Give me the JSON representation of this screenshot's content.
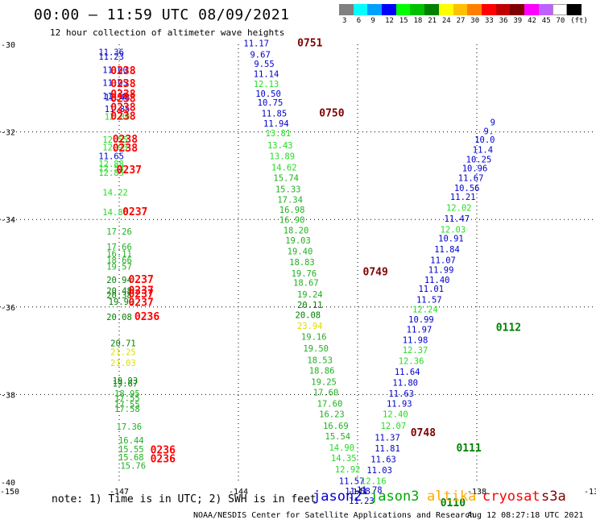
{
  "header": {
    "title": "00:00 – 11:59 UTC 08/09/2021",
    "subtitle": "12 hour collection of altimeter wave heights"
  },
  "colorbar": {
    "ticks": [
      "3",
      "6",
      "9",
      "12",
      "15",
      "18",
      "21",
      "24",
      "27",
      "30",
      "33",
      "36",
      "39",
      "42",
      "45",
      "70",
      "(ft)"
    ],
    "colors": [
      "#808080",
      "#00ffff",
      "#00a0ff",
      "#0000ff",
      "#00ff00",
      "#00c000",
      "#008000",
      "#ffff00",
      "#ffc000",
      "#ff8000",
      "#ff0000",
      "#c00000",
      "#800000",
      "#ff00ff",
      "#c060ff",
      "#ffffff",
      "#000000"
    ]
  },
  "axes": {
    "lon_ticks": [
      "-150",
      "-147",
      "-144",
      "-141",
      "-138",
      "-13"
    ],
    "lat_ticks": [
      "-30",
      "-32",
      "-34",
      "-36",
      "-38",
      "-40"
    ]
  },
  "colors": {
    "jason2": "#0000cc",
    "jason3": "#00aa00",
    "altika": "#ffaa00",
    "cryosat": "#ff0000",
    "s3a": "#800000",
    "dkgreen": "#008000",
    "light": "#22dd22",
    "mid": "#20b020",
    "yellow": "#dddd00",
    "grid": "#000000"
  },
  "observations": [
    {
      "lon": -147.2,
      "lat": -30.25,
      "v": "11.36",
      "c": "jason2"
    },
    {
      "lon": -147.2,
      "lat": -30.35,
      "v": "11.23",
      "c": "jason2"
    },
    {
      "lon": -147.1,
      "lat": -30.65,
      "v": "11.00",
      "c": "jason2"
    },
    {
      "lon": -147.1,
      "lat": -30.95,
      "v": "11.05",
      "c": "jason2"
    },
    {
      "lon": -147.1,
      "lat": -31.25,
      "v": "11.18",
      "c": "jason2"
    },
    {
      "lon": -147.05,
      "lat": -31.28,
      "v": "11.48",
      "c": "jason2"
    },
    {
      "lon": -147.05,
      "lat": -31.55,
      "v": "11.85",
      "c": "jason2"
    },
    {
      "lon": -147.05,
      "lat": -31.72,
      "v": "12.80",
      "c": "light"
    },
    {
      "lon": -147.1,
      "lat": -32.25,
      "v": "12.55",
      "c": "light"
    },
    {
      "lon": -147.1,
      "lat": -32.42,
      "v": "12.93",
      "c": "light"
    },
    {
      "lon": -147.2,
      "lat": -32.62,
      "v": "11.65",
      "c": "jason2"
    },
    {
      "lon": -147.2,
      "lat": -32.8,
      "v": "12.88",
      "c": "light"
    },
    {
      "lon": -147.2,
      "lat": -32.9,
      "v": "12.53",
      "c": "light"
    },
    {
      "lon": -147.2,
      "lat": -33.0,
      "v": "12.85",
      "c": "light"
    },
    {
      "lon": -147.1,
      "lat": -33.45,
      "v": "14.22",
      "c": "light"
    },
    {
      "lon": -147.1,
      "lat": -33.9,
      "v": "14.86",
      "c": "light"
    },
    {
      "lon": -147.0,
      "lat": -34.35,
      "v": "17.26",
      "c": "mid"
    },
    {
      "lon": -147.0,
      "lat": -34.7,
      "v": "17.66",
      "c": "mid"
    },
    {
      "lon": -147.0,
      "lat": -34.85,
      "v": "16.11",
      "c": "mid"
    },
    {
      "lon": -147.0,
      "lat": -35.0,
      "v": "18.66",
      "c": "mid"
    },
    {
      "lon": -147.0,
      "lat": -35.15,
      "v": "19.57",
      "c": "mid"
    },
    {
      "lon": -147.0,
      "lat": -35.45,
      "v": "20.94",
      "c": "dkgreen"
    },
    {
      "lon": -147.0,
      "lat": -35.7,
      "v": "20.48",
      "c": "dkgreen"
    },
    {
      "lon": -147.0,
      "lat": -35.8,
      "v": "20.38",
      "c": "dkgreen"
    },
    {
      "lon": -146.95,
      "lat": -35.95,
      "v": "19.99",
      "c": "dkgreen"
    },
    {
      "lon": -147.0,
      "lat": -36.3,
      "v": "20.08",
      "c": "dkgreen"
    },
    {
      "lon": -146.9,
      "lat": -36.9,
      "v": "20.71",
      "c": "dkgreen"
    },
    {
      "lon": -146.9,
      "lat": -37.1,
      "v": "21.25",
      "c": "yellow"
    },
    {
      "lon": -146.9,
      "lat": -37.35,
      "v": "21.03",
      "c": "yellow"
    },
    {
      "lon": -146.85,
      "lat": -37.75,
      "v": "19.93",
      "c": "dkgreen"
    },
    {
      "lon": -146.85,
      "lat": -37.82,
      "v": "19.67",
      "c": "dkgreen"
    },
    {
      "lon": -146.8,
      "lat": -38.05,
      "v": "18.95",
      "c": "mid"
    },
    {
      "lon": -146.8,
      "lat": -38.15,
      "v": "17.55",
      "c": "mid"
    },
    {
      "lon": -146.8,
      "lat": -38.3,
      "v": "17.55",
      "c": "mid"
    },
    {
      "lon": -146.8,
      "lat": -38.4,
      "v": "17.58",
      "c": "mid"
    },
    {
      "lon": -146.75,
      "lat": -38.8,
      "v": "17.36",
      "c": "mid"
    },
    {
      "lon": -146.7,
      "lat": -39.12,
      "v": "16.44",
      "c": "mid"
    },
    {
      "lon": -146.7,
      "lat": -39.32,
      "v": "15.55",
      "c": "mid"
    },
    {
      "lon": -146.7,
      "lat": -39.5,
      "v": "15.68",
      "c": "mid"
    },
    {
      "lon": -146.65,
      "lat": -39.7,
      "v": "15.76",
      "c": "mid"
    },
    {
      "lon": -143.55,
      "lat": -30.05,
      "v": "11.17",
      "c": "jason2"
    },
    {
      "lon": -143.45,
      "lat": -30.3,
      "v": "9.67",
      "c": "jason2"
    },
    {
      "lon": -143.35,
      "lat": -30.52,
      "v": "9.55",
      "c": "jason2"
    },
    {
      "lon": -143.3,
      "lat": -30.75,
      "v": "11.14",
      "c": "jason2"
    },
    {
      "lon": -143.3,
      "lat": -30.98,
      "v": "12.13",
      "c": "light"
    },
    {
      "lon": -143.25,
      "lat": -31.2,
      "v": "10.50",
      "c": "jason2"
    },
    {
      "lon": -143.2,
      "lat": -31.4,
      "v": "10.75",
      "c": "jason2"
    },
    {
      "lon": -143.1,
      "lat": -31.65,
      "v": "11.85",
      "c": "jason2"
    },
    {
      "lon": -143.05,
      "lat": -31.88,
      "v": "11.94",
      "c": "jason2"
    },
    {
      "lon": -143.0,
      "lat": -32.1,
      "v": "13.81",
      "c": "light"
    },
    {
      "lon": -142.95,
      "lat": -32.38,
      "v": "13.43",
      "c": "light"
    },
    {
      "lon": -142.9,
      "lat": -32.62,
      "v": "13.89",
      "c": "light"
    },
    {
      "lon": -142.85,
      "lat": -32.88,
      "v": "14.62",
      "c": "light"
    },
    {
      "lon": -142.8,
      "lat": -33.12,
      "v": "15.74",
      "c": "mid"
    },
    {
      "lon": -142.75,
      "lat": -33.38,
      "v": "15.33",
      "c": "mid"
    },
    {
      "lon": -142.7,
      "lat": -33.62,
      "v": "17.34",
      "c": "mid"
    },
    {
      "lon": -142.65,
      "lat": -33.85,
      "v": "16.98",
      "c": "mid"
    },
    {
      "lon": -142.65,
      "lat": -34.08,
      "v": "16.90",
      "c": "mid"
    },
    {
      "lon": -142.55,
      "lat": -34.32,
      "v": "18.20",
      "c": "mid"
    },
    {
      "lon": -142.5,
      "lat": -34.55,
      "v": "19.03",
      "c": "mid"
    },
    {
      "lon": -142.45,
      "lat": -34.8,
      "v": "19.40",
      "c": "mid"
    },
    {
      "lon": -142.4,
      "lat": -35.05,
      "v": "18.83",
      "c": "mid"
    },
    {
      "lon": -142.35,
      "lat": -35.3,
      "v": "19.76",
      "c": "mid"
    },
    {
      "lon": -142.3,
      "lat": -35.52,
      "v": "18.67",
      "c": "mid"
    },
    {
      "lon": -142.2,
      "lat": -35.78,
      "v": "19.24",
      "c": "mid"
    },
    {
      "lon": -142.2,
      "lat": -36.02,
      "v": "20.11",
      "c": "dkgreen"
    },
    {
      "lon": -142.25,
      "lat": -36.25,
      "v": "20.08",
      "c": "dkgreen"
    },
    {
      "lon": -142.2,
      "lat": -36.5,
      "v": "23.94",
      "c": "yellow"
    },
    {
      "lon": -142.1,
      "lat": -36.75,
      "v": "19.16",
      "c": "mid"
    },
    {
      "lon": -142.05,
      "lat": -37.02,
      "v": "19.50",
      "c": "mid"
    },
    {
      "lon": -141.95,
      "lat": -37.28,
      "v": "18.53",
      "c": "mid"
    },
    {
      "lon": -141.9,
      "lat": -37.52,
      "v": "18.86",
      "c": "mid"
    },
    {
      "lon": -141.85,
      "lat": -37.78,
      "v": "19.25",
      "c": "mid"
    },
    {
      "lon": -141.8,
      "lat": -38.02,
      "v": "17.60",
      "c": "mid"
    },
    {
      "lon": -141.7,
      "lat": -38.28,
      "v": "17.60",
      "c": "mid"
    },
    {
      "lon": -141.65,
      "lat": -38.52,
      "v": "16.23",
      "c": "mid"
    },
    {
      "lon": -141.55,
      "lat": -38.78,
      "v": "16.69",
      "c": "mid"
    },
    {
      "lon": -141.5,
      "lat": -39.02,
      "v": "15.54",
      "c": "mid"
    },
    {
      "lon": -141.4,
      "lat": -39.28,
      "v": "14.90",
      "c": "light"
    },
    {
      "lon": -141.35,
      "lat": -39.52,
      "v": "14.35",
      "c": "light"
    },
    {
      "lon": -141.25,
      "lat": -39.78,
      "v": "12.92",
      "c": "light"
    },
    {
      "lon": -141.15,
      "lat": -40.05,
      "v": "11.57",
      "c": "jason2"
    },
    {
      "lon": -141.0,
      "lat": -40.28,
      "v": "11.58",
      "c": "jason2"
    },
    {
      "lon": -140.9,
      "lat": -40.5,
      "v": "11.23",
      "c": "jason2"
    },
    {
      "lon": -140.7,
      "lat": -40.25,
      "v": "11.78",
      "c": "jason2"
    },
    {
      "lon": -140.6,
      "lat": -40.05,
      "v": "12.16",
      "c": "light"
    },
    {
      "lon": -140.45,
      "lat": -39.8,
      "v": "11.03",
      "c": "jason2"
    },
    {
      "lon": -140.35,
      "lat": -39.55,
      "v": "11.63",
      "c": "jason2"
    },
    {
      "lon": -140.25,
      "lat": -39.3,
      "v": "11.81",
      "c": "jason2"
    },
    {
      "lon": -140.25,
      "lat": -39.05,
      "v": "11.37",
      "c": "jason2"
    },
    {
      "lon": -140.1,
      "lat": -38.78,
      "v": "12.07",
      "c": "light"
    },
    {
      "lon": -140.05,
      "lat": -38.52,
      "v": "12.40",
      "c": "light"
    },
    {
      "lon": -139.95,
      "lat": -38.28,
      "v": "11.93",
      "c": "jason2"
    },
    {
      "lon": -139.9,
      "lat": -38.05,
      "v": "11.63",
      "c": "jason2"
    },
    {
      "lon": -139.8,
      "lat": -37.8,
      "v": "11.80",
      "c": "jason2"
    },
    {
      "lon": -139.75,
      "lat": -37.55,
      "v": "11.64",
      "c": "jason2"
    },
    {
      "lon": -139.65,
      "lat": -37.3,
      "v": "12.36",
      "c": "light"
    },
    {
      "lon": -139.55,
      "lat": -37.05,
      "v": "12.37",
      "c": "light"
    },
    {
      "lon": -139.55,
      "lat": -36.82,
      "v": "11.98",
      "c": "jason2"
    },
    {
      "lon": -139.45,
      "lat": -36.58,
      "v": "11.97",
      "c": "jason2"
    },
    {
      "lon": -139.4,
      "lat": -36.35,
      "v": "10.99",
      "c": "jason2"
    },
    {
      "lon": -139.3,
      "lat": -36.12,
      "v": "12.24",
      "c": "light"
    },
    {
      "lon": -139.2,
      "lat": -35.9,
      "v": "11.57",
      "c": "jason2"
    },
    {
      "lon": -139.15,
      "lat": -35.65,
      "v": "11.01",
      "c": "jason2"
    },
    {
      "lon": -139.0,
      "lat": -35.45,
      "v": "11.40",
      "c": "jason2"
    },
    {
      "lon": -138.9,
      "lat": -35.22,
      "v": "11.99",
      "c": "jason2"
    },
    {
      "lon": -138.85,
      "lat": -35.0,
      "v": "11.07",
      "c": "jason2"
    },
    {
      "lon": -138.75,
      "lat": -34.75,
      "v": "11.84",
      "c": "jason2"
    },
    {
      "lon": -138.65,
      "lat": -34.5,
      "v": "10.91",
      "c": "jason2"
    },
    {
      "lon": -138.6,
      "lat": -34.3,
      "v": "12.03",
      "c": "light"
    },
    {
      "lon": -138.5,
      "lat": -34.05,
      "v": "11.47",
      "c": "jason2"
    },
    {
      "lon": -138.45,
      "lat": -33.8,
      "v": "12.02",
      "c": "light"
    },
    {
      "lon": -138.35,
      "lat": -33.55,
      "v": "11.21",
      "c": "jason2"
    },
    {
      "lon": -138.25,
      "lat": -33.35,
      "v": "10.56",
      "c": "jason2"
    },
    {
      "lon": -138.15,
      "lat": -33.12,
      "v": "11.67",
      "c": "jason2"
    },
    {
      "lon": -138.05,
      "lat": -32.9,
      "v": "10.96",
      "c": "jason2"
    },
    {
      "lon": -137.95,
      "lat": -32.7,
      "v": "10.25",
      "c": "jason2"
    },
    {
      "lon": -137.85,
      "lat": -32.48,
      "v": "11.4",
      "c": "jason2"
    },
    {
      "lon": -137.8,
      "lat": -32.25,
      "v": "10.0",
      "c": "jason2"
    },
    {
      "lon": -137.7,
      "lat": -32.05,
      "v": "9.",
      "c": "jason2"
    },
    {
      "lon": -137.6,
      "lat": -31.85,
      "v": "9",
      "c": "jason2"
    }
  ],
  "time_labels": [
    {
      "lon": -146.9,
      "lat": -30.68,
      "v": "0238",
      "c": "cryosat"
    },
    {
      "lon": -146.9,
      "lat": -30.98,
      "v": "0238",
      "c": "cryosat"
    },
    {
      "lon": -146.9,
      "lat": -31.22,
      "v": "0238",
      "c": "cryosat"
    },
    {
      "lon": -146.9,
      "lat": -31.32,
      "v": "0238",
      "c": "cryosat"
    },
    {
      "lon": -146.9,
      "lat": -31.52,
      "v": "0238",
      "c": "cryosat"
    },
    {
      "lon": -146.9,
      "lat": -31.72,
      "v": "0238",
      "c": "cryosat"
    },
    {
      "lon": -146.85,
      "lat": -32.25,
      "v": "0238",
      "c": "cryosat"
    },
    {
      "lon": -146.85,
      "lat": -32.45,
      "v": "0238",
      "c": "cryosat"
    },
    {
      "lon": -146.75,
      "lat": -32.95,
      "v": "0237",
      "c": "cryosat"
    },
    {
      "lon": -146.6,
      "lat": -33.9,
      "v": "0237",
      "c": "cryosat"
    },
    {
      "lon": -146.45,
      "lat": -35.45,
      "v": "0237",
      "c": "cryosat"
    },
    {
      "lon": -146.45,
      "lat": -35.7,
      "v": "0237",
      "c": "cryosat"
    },
    {
      "lon": -146.45,
      "lat": -35.78,
      "v": "0237",
      "c": "cryosat"
    },
    {
      "lon": -146.45,
      "lat": -35.98,
      "v": "0237",
      "c": "cryosat"
    },
    {
      "lon": -146.3,
      "lat": -36.3,
      "v": "0236",
      "c": "cryosat"
    },
    {
      "lon": -145.9,
      "lat": -39.35,
      "v": "0236",
      "c": "cryosat"
    },
    {
      "lon": -145.9,
      "lat": -39.55,
      "v": "0236",
      "c": "cryosat"
    },
    {
      "lon": -142.2,
      "lat": -30.05,
      "v": "0751",
      "c": "s3a"
    },
    {
      "lon": -141.65,
      "lat": -31.65,
      "v": "0750",
      "c": "s3a"
    },
    {
      "lon": -140.55,
      "lat": -35.28,
      "v": "0749",
      "c": "s3a"
    },
    {
      "lon": -139.35,
      "lat": -38.95,
      "v": "0748",
      "c": "s3a"
    },
    {
      "lon": -137.2,
      "lat": -36.55,
      "v": "0112",
      "c": "dkgreen"
    },
    {
      "lon": -138.2,
      "lat": -39.3,
      "v": "0111",
      "c": "dkgreen"
    },
    {
      "lon": -138.6,
      "lat": -40.55,
      "v": "0110",
      "c": "dkgreen"
    }
  ],
  "note": "note: 1) Time is in UTC; 2) SWH is in feet",
  "legend": [
    {
      "label": "jason2",
      "color": "#0000cc"
    },
    {
      "label": "jason3",
      "color": "#00aa00"
    },
    {
      "label": "altika",
      "color": "#ffaa00"
    },
    {
      "label": "cryosat",
      "color": "#ff0000"
    },
    {
      "label": "s3a",
      "color": "#800000"
    }
  ],
  "footer": {
    "credit": "NOAA/NESDIS Center for Satellite Applications and Research",
    "stamp": "Aug 12 08:27:18 UTC 2021"
  }
}
